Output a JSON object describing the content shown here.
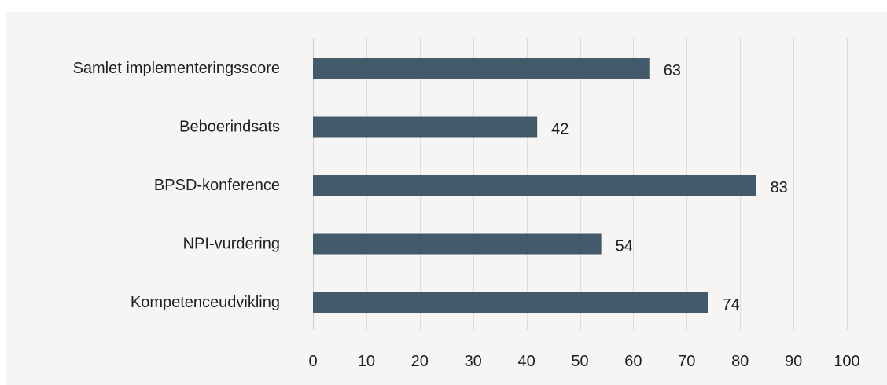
{
  "chart_data": {
    "type": "bar",
    "orientation": "horizontal",
    "title": "",
    "xlabel": "",
    "ylabel": "",
    "categories": [
      "Samlet implementeringsscore",
      "Beboerindsats",
      "BPSD-konference",
      "NPI-vurdering",
      "Kompetenceudvikling"
    ],
    "values": [
      63,
      42,
      83,
      54,
      74
    ],
    "xlim": [
      0,
      100
    ],
    "xticks": [
      0,
      10,
      20,
      30,
      40,
      50,
      60,
      70,
      80,
      90,
      100
    ],
    "grid": "vertical",
    "legend": "none",
    "colors": {
      "bar": "#435a6a",
      "grid": "#d9dddf",
      "background": "#f6f5f3",
      "text": "#1f1f1f"
    }
  }
}
